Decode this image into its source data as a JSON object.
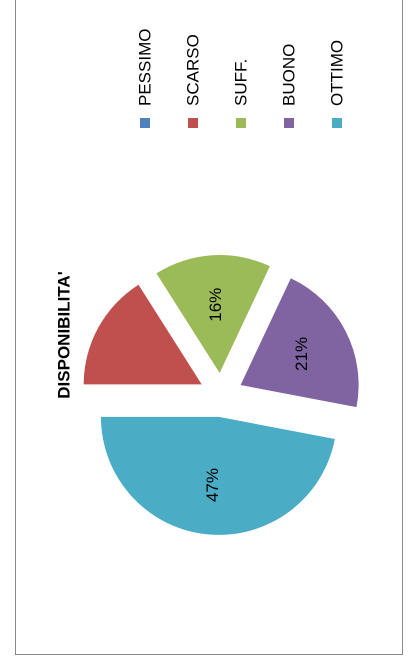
{
  "chart_data": {
    "type": "pie",
    "title": "DISPONIBILITA'",
    "categories": [
      "PESSIMO",
      "SCARSO",
      "SUFF.",
      "BUONO",
      "OTTIMO"
    ],
    "values": [
      0,
      16,
      16,
      21,
      47
    ],
    "data_labels": [
      "",
      "",
      "16%",
      "21%",
      "47%"
    ],
    "colors": [
      "#4F81BD",
      "#C0504D",
      "#9BBB59",
      "#8064A2",
      "#4BACC6"
    ],
    "exploded": true,
    "legend_position": "top",
    "orientation": "rotated 90° counter-clockwise"
  }
}
